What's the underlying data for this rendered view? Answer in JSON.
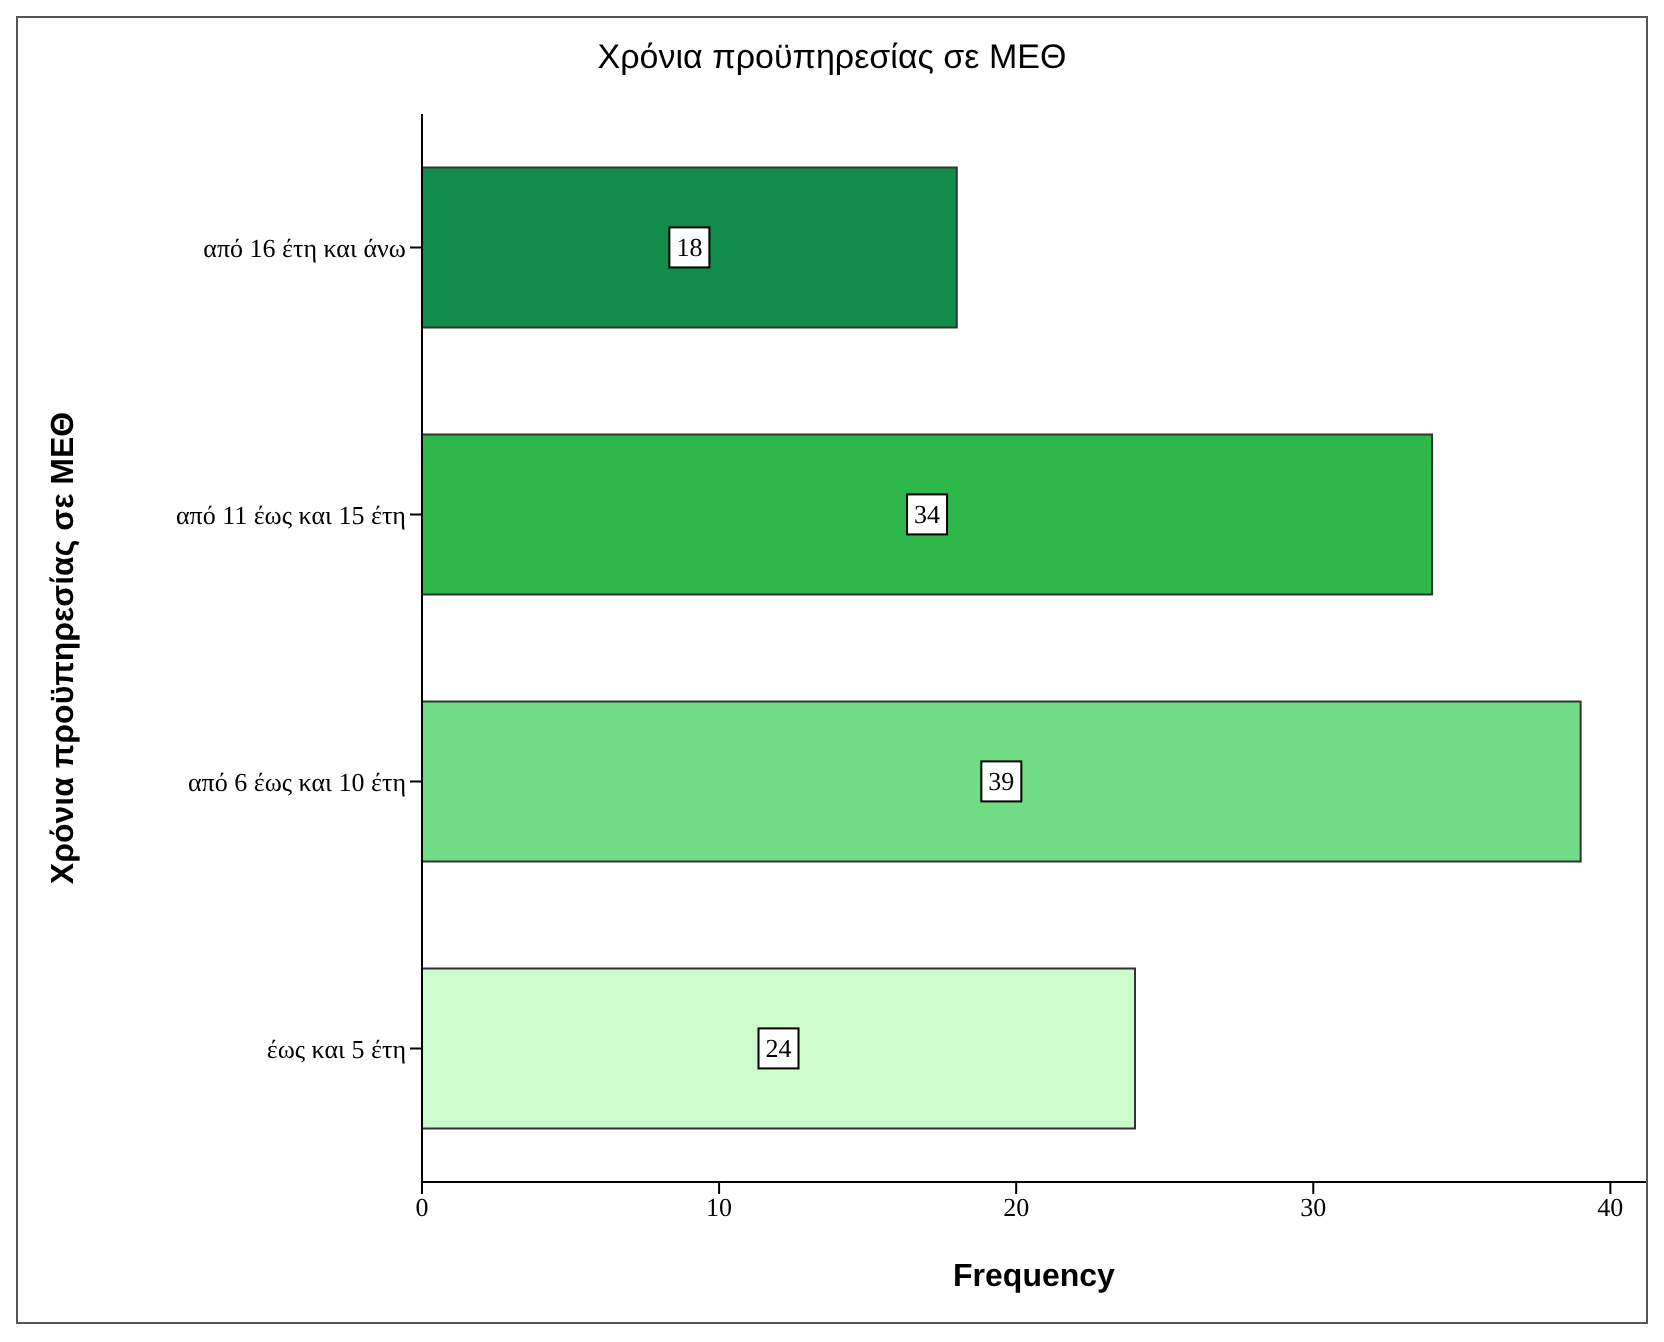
{
  "chart_data": {
    "type": "bar",
    "orientation": "horizontal",
    "title": "Χρόνια προϋπηρεσίας σε ΜΕΘ",
    "xlabel": "Frequency",
    "ylabel": "Χρόνια προϋπηρεσίας σε ΜΕΘ",
    "categories": [
      "από 16  έτη και άνω",
      "από 11 έως και 15 έτη",
      "από 6 έως και 10 έτη",
      "έως και 5 έτη"
    ],
    "values": [
      18,
      34,
      39,
      24
    ],
    "colors": [
      "#118c4a",
      "#2eb84a",
      "#70dc86",
      "#ccfccc"
    ],
    "xlim": [
      0,
      41.2
    ],
    "xticks": [
      0,
      10,
      20,
      30,
      40
    ],
    "data_labels": true,
    "grid": false,
    "legend": false
  }
}
